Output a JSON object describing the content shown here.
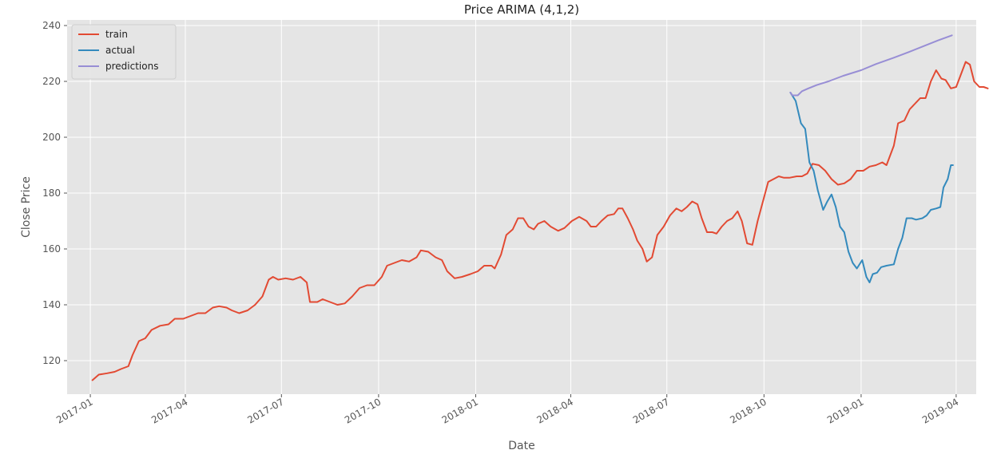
{
  "chart_data": {
    "type": "line",
    "title": "Price ARIMA (4,1,2)",
    "xlabel": "Date",
    "ylabel": "Close Price",
    "xlim": [
      "2016-12-10",
      "2019-04-20"
    ],
    "ylim": [
      108,
      242
    ],
    "grid": true,
    "legend_position": "top-left",
    "x_ticks": [
      "2017-01",
      "2017-04",
      "2017-07",
      "2017-10",
      "2018-01",
      "2018-04",
      "2018-07",
      "2018-10",
      "2019-01",
      "2019-04"
    ],
    "y_ticks": [
      120,
      140,
      160,
      180,
      200,
      220,
      240
    ],
    "series": [
      {
        "name": "train",
        "color": "#E24A33",
        "points": [
          [
            "2017-01-03",
            113
          ],
          [
            "2017-01-09",
            115
          ],
          [
            "2017-01-17",
            115.5
          ],
          [
            "2017-01-24",
            116
          ],
          [
            "2017-01-30",
            117
          ],
          [
            "2017-02-06",
            118
          ],
          [
            "2017-02-10",
            122
          ],
          [
            "2017-02-16",
            127
          ],
          [
            "2017-02-22",
            128
          ],
          [
            "2017-02-28",
            131
          ],
          [
            "2017-03-08",
            132.5
          ],
          [
            "2017-03-16",
            133
          ],
          [
            "2017-03-22",
            135
          ],
          [
            "2017-03-30",
            135
          ],
          [
            "2017-04-06",
            136
          ],
          [
            "2017-04-13",
            137
          ],
          [
            "2017-04-20",
            137
          ],
          [
            "2017-04-27",
            139
          ],
          [
            "2017-05-03",
            139.5
          ],
          [
            "2017-05-10",
            139
          ],
          [
            "2017-05-15",
            138
          ],
          [
            "2017-05-22",
            137
          ],
          [
            "2017-05-30",
            138
          ],
          [
            "2017-06-06",
            140
          ],
          [
            "2017-06-13",
            143
          ],
          [
            "2017-06-19",
            149
          ],
          [
            "2017-06-23",
            150
          ],
          [
            "2017-06-28",
            149
          ],
          [
            "2017-07-05",
            149.5
          ],
          [
            "2017-07-12",
            149
          ],
          [
            "2017-07-19",
            150
          ],
          [
            "2017-07-25",
            148
          ],
          [
            "2017-07-28",
            141
          ],
          [
            "2017-08-04",
            141
          ],
          [
            "2017-08-09",
            142
          ],
          [
            "2017-08-16",
            141
          ],
          [
            "2017-08-23",
            140
          ],
          [
            "2017-08-30",
            140.5
          ],
          [
            "2017-09-06",
            143
          ],
          [
            "2017-09-13",
            146
          ],
          [
            "2017-09-20",
            147
          ],
          [
            "2017-09-27",
            147
          ],
          [
            "2017-10-04",
            150
          ],
          [
            "2017-10-09",
            154
          ],
          [
            "2017-10-16",
            155
          ],
          [
            "2017-10-23",
            156
          ],
          [
            "2017-10-30",
            155.5
          ],
          [
            "2017-11-06",
            157
          ],
          [
            "2017-11-10",
            159.5
          ],
          [
            "2017-11-17",
            159
          ],
          [
            "2017-11-24",
            157
          ],
          [
            "2017-11-30",
            156
          ],
          [
            "2017-12-05",
            152
          ],
          [
            "2017-12-12",
            149.5
          ],
          [
            "2017-12-19",
            150
          ],
          [
            "2017-12-27",
            151
          ],
          [
            "2018-01-03",
            152
          ],
          [
            "2018-01-09",
            154
          ],
          [
            "2018-01-16",
            154
          ],
          [
            "2018-01-19",
            153
          ],
          [
            "2018-01-25",
            158
          ],
          [
            "2018-01-30",
            165
          ],
          [
            "2018-02-05",
            167
          ],
          [
            "2018-02-10",
            171
          ],
          [
            "2018-02-15",
            171
          ],
          [
            "2018-02-20",
            168
          ],
          [
            "2018-02-25",
            167
          ],
          [
            "2018-03-01",
            169
          ],
          [
            "2018-03-07",
            170
          ],
          [
            "2018-03-13",
            168
          ],
          [
            "2018-03-20",
            166.5
          ],
          [
            "2018-03-26",
            167.5
          ],
          [
            "2018-04-02",
            170
          ],
          [
            "2018-04-09",
            171.5
          ],
          [
            "2018-04-16",
            170
          ],
          [
            "2018-04-20",
            168
          ],
          [
            "2018-04-25",
            168
          ],
          [
            "2018-04-30",
            170
          ],
          [
            "2018-05-06",
            172
          ],
          [
            "2018-05-12",
            172.5
          ],
          [
            "2018-05-16",
            174.5
          ],
          [
            "2018-05-20",
            174.5
          ],
          [
            "2018-05-25",
            171
          ],
          [
            "2018-05-30",
            167
          ],
          [
            "2018-06-03",
            163
          ],
          [
            "2018-06-08",
            160
          ],
          [
            "2018-06-12",
            155.5
          ],
          [
            "2018-06-17",
            157
          ],
          [
            "2018-06-22",
            165
          ],
          [
            "2018-06-28",
            168
          ],
          [
            "2018-07-04",
            172
          ],
          [
            "2018-07-10",
            174.5
          ],
          [
            "2018-07-15",
            173.5
          ],
          [
            "2018-07-20",
            175
          ],
          [
            "2018-07-25",
            177
          ],
          [
            "2018-07-30",
            176
          ],
          [
            "2018-08-03",
            171
          ],
          [
            "2018-08-08",
            166
          ],
          [
            "2018-08-13",
            166
          ],
          [
            "2018-08-17",
            165.5
          ],
          [
            "2018-08-22",
            168
          ],
          [
            "2018-08-27",
            170
          ],
          [
            "2018-09-01",
            171
          ],
          [
            "2018-09-06",
            173.5
          ],
          [
            "2018-09-10",
            170
          ],
          [
            "2018-09-15",
            162
          ],
          [
            "2018-09-20",
            161.5
          ],
          [
            "2018-09-25",
            170
          ],
          [
            "2018-09-30",
            177
          ],
          [
            "2018-10-05",
            184
          ],
          [
            "2018-10-10",
            185
          ],
          [
            "2018-10-15",
            186
          ],
          [
            "2018-10-20",
            185.5
          ],
          [
            "2018-10-25",
            185.5
          ],
          [
            "2018-11-01",
            186
          ],
          [
            "2018-11-06",
            186
          ],
          [
            "2018-11-11",
            187
          ],
          [
            "2018-11-16",
            190.5
          ],
          [
            "2018-11-22",
            190
          ],
          [
            "2018-11-28",
            188
          ],
          [
            "2018-12-04",
            185
          ],
          [
            "2018-12-10",
            183
          ],
          [
            "2018-12-16",
            183.5
          ],
          [
            "2018-12-22",
            185
          ],
          [
            "2018-12-28",
            188
          ],
          [
            "2019-01-03",
            188
          ],
          [
            "2019-01-09",
            189.5
          ],
          [
            "2019-01-15",
            190
          ],
          [
            "2019-01-21",
            191
          ],
          [
            "2019-01-25",
            190
          ],
          [
            "2019-02-01",
            197
          ],
          [
            "2019-02-05",
            205
          ],
          [
            "2019-02-11",
            206
          ],
          [
            "2019-02-16",
            210
          ],
          [
            "2019-02-21",
            212
          ],
          [
            "2019-02-26",
            214
          ],
          [
            "2019-03-03",
            214
          ],
          [
            "2019-03-08",
            220
          ],
          [
            "2019-03-13",
            224
          ],
          [
            "2019-03-18",
            221
          ],
          [
            "2019-03-22",
            220.5
          ],
          [
            "2019-03-27",
            217.5
          ],
          [
            "2019-04-01",
            218
          ],
          [
            "2019-04-05",
            222
          ],
          [
            "2019-04-10",
            227
          ],
          [
            "2019-04-14",
            226
          ],
          [
            "2019-04-18",
            220
          ],
          [
            "2019-04-23",
            218
          ],
          [
            "2019-04-27",
            218
          ],
          [
            "2019-05-01",
            217.5
          ]
        ]
      },
      {
        "name": "actual",
        "color": "#348ABD",
        "points": [
          [
            "2018-10-26",
            216
          ],
          [
            "2018-10-31",
            213
          ],
          [
            "2018-11-05",
            205
          ],
          [
            "2018-11-09",
            203
          ],
          [
            "2018-11-13",
            191
          ],
          [
            "2018-11-17",
            188
          ],
          [
            "2018-11-21",
            181
          ],
          [
            "2018-11-26",
            174
          ],
          [
            "2018-11-30",
            177
          ],
          [
            "2018-12-04",
            179.5
          ],
          [
            "2018-12-08",
            175
          ],
          [
            "2018-12-12",
            168
          ],
          [
            "2018-12-16",
            166
          ],
          [
            "2018-12-20",
            159
          ],
          [
            "2018-12-24",
            155
          ],
          [
            "2018-12-28",
            153
          ],
          [
            "2019-01-02",
            156
          ],
          [
            "2019-01-06",
            150
          ],
          [
            "2019-01-09",
            148
          ],
          [
            "2019-01-12",
            151
          ],
          [
            "2019-01-16",
            151.5
          ],
          [
            "2019-01-20",
            153.5
          ],
          [
            "2019-01-25",
            154
          ],
          [
            "2019-02-01",
            154.5
          ],
          [
            "2019-02-05",
            160
          ],
          [
            "2019-02-09",
            164
          ],
          [
            "2019-02-13",
            171
          ],
          [
            "2019-02-18",
            171
          ],
          [
            "2019-02-22",
            170.5
          ],
          [
            "2019-02-28",
            171
          ],
          [
            "2019-03-04",
            172
          ],
          [
            "2019-03-08",
            174
          ],
          [
            "2019-03-13",
            174.5
          ],
          [
            "2019-03-17",
            175
          ],
          [
            "2019-03-20",
            182
          ],
          [
            "2019-03-24",
            185
          ],
          [
            "2019-03-27",
            190
          ],
          [
            "2019-03-29",
            190
          ]
        ]
      },
      {
        "name": "predictions",
        "color": "#988ED5",
        "points": [
          [
            "2018-10-26",
            216
          ],
          [
            "2018-10-28",
            215
          ],
          [
            "2018-11-02",
            215
          ],
          [
            "2018-11-06",
            216.5
          ],
          [
            "2018-11-12",
            217.5
          ],
          [
            "2018-11-20",
            218.7
          ],
          [
            "2018-12-01",
            220
          ],
          [
            "2018-12-15",
            222
          ],
          [
            "2019-01-01",
            224
          ],
          [
            "2019-01-15",
            226.2
          ],
          [
            "2019-02-01",
            228.5
          ],
          [
            "2019-02-15",
            230.5
          ],
          [
            "2019-03-01",
            232.6
          ],
          [
            "2019-03-15",
            234.7
          ],
          [
            "2019-03-28",
            236.5
          ]
        ]
      }
    ]
  }
}
